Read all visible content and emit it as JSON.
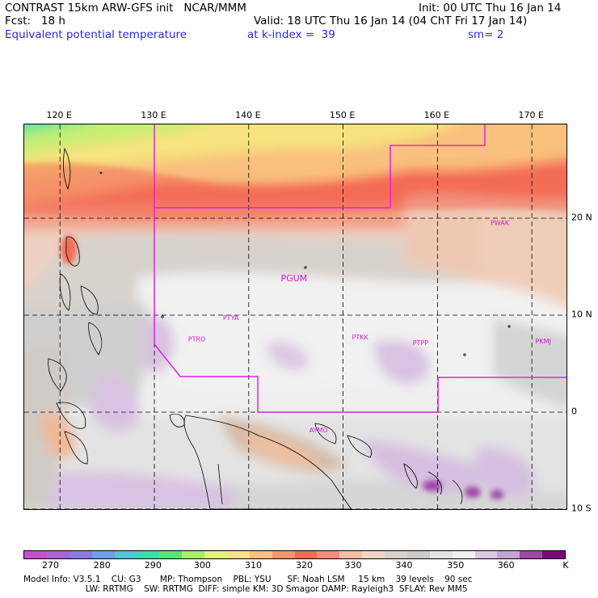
{
  "header": {
    "model_line": "CONTRAST 15km ARW-GFS init   NCAR/MMM",
    "init_line": "Init: 00 UTC Thu 16 Jan 14",
    "fcst_line": "Fcst:   18 h",
    "valid_line": "Valid: 18 UTC Thu 16 Jan 14 (04 ChT Fri 17 Jan 14)",
    "field_name": "Equivalent potential temperature",
    "level_line": "at k-index =  39",
    "smooth_line": "sm= 2"
  },
  "map": {
    "lon_labels": [
      {
        "deg": 120,
        "label": "120 E"
      },
      {
        "deg": 130,
        "label": "130 E"
      },
      {
        "deg": 140,
        "label": "140 E"
      },
      {
        "deg": 150,
        "label": "150 E"
      },
      {
        "deg": 160,
        "label": "160 E"
      },
      {
        "deg": 170,
        "label": "170 E"
      }
    ],
    "lat_labels": [
      {
        "deg": 20,
        "label": "20 N"
      },
      {
        "deg": 10,
        "label": "10 N"
      },
      {
        "deg": 0,
        "label": "0"
      },
      {
        "deg": -10,
        "label": "10 S"
      }
    ],
    "stations": [
      {
        "id": "PWAK",
        "lon": 166.6,
        "lat": 19.3
      },
      {
        "id": "PGUM",
        "lon": 144.8,
        "lat": 13.5
      },
      {
        "id": "PTYA",
        "lon": 138.1,
        "lat": 9.5
      },
      {
        "id": "PTRO",
        "lon": 134.5,
        "lat": 7.3
      },
      {
        "id": "PTKK",
        "lon": 151.8,
        "lat": 7.5
      },
      {
        "id": "PTPP",
        "lon": 158.2,
        "lat": 6.9
      },
      {
        "id": "PKMJ",
        "lon": 171.2,
        "lat": 7.1
      },
      {
        "id": "AYMO",
        "lon": 147.4,
        "lat": -2.1
      }
    ]
  },
  "colorbar": {
    "unit": "K",
    "colors": [
      "#c84fc8",
      "#a865d6",
      "#8a7ce0",
      "#6da0e8",
      "#4fc6d8",
      "#3fdca8",
      "#55e67a",
      "#a8ee6a",
      "#e4f27a",
      "#fbe08a",
      "#f9c07e",
      "#f7946c",
      "#f36c56",
      "#f88a7c",
      "#f6bea8",
      "#efd6c6",
      "#d9d2cc",
      "#cccccc",
      "#e3e3e3",
      "#f0f0f0",
      "#dcc8e2",
      "#c4a4d2",
      "#9c48a8",
      "#7a087a"
    ],
    "labels": [
      {
        "value": "270",
        "pos": 0.05
      },
      {
        "value": "280",
        "pos": 0.145
      },
      {
        "value": "290",
        "pos": 0.239
      },
      {
        "value": "300",
        "pos": 0.33
      },
      {
        "value": "310",
        "pos": 0.424
      },
      {
        "value": "320",
        "pos": 0.518
      },
      {
        "value": "330",
        "pos": 0.608
      },
      {
        "value": "340",
        "pos": 0.702
      },
      {
        "value": "350",
        "pos": 0.797
      },
      {
        "value": "360",
        "pos": 0.89
      },
      {
        "value": "K",
        "pos": 1.0
      }
    ]
  },
  "footer": {
    "line1": "Model Info: V3.5.1    CU: G3       MP: Thompson    PBL: YSU      SF: Noah LSM     15 km    39 levels    90 sec",
    "line2": "                       LW: RRTMG    SW: RRTMG  DIFF: simple KM: 3D Smagor DAMP: Rayleigh3  SFLAY: Rev MM5"
  }
}
